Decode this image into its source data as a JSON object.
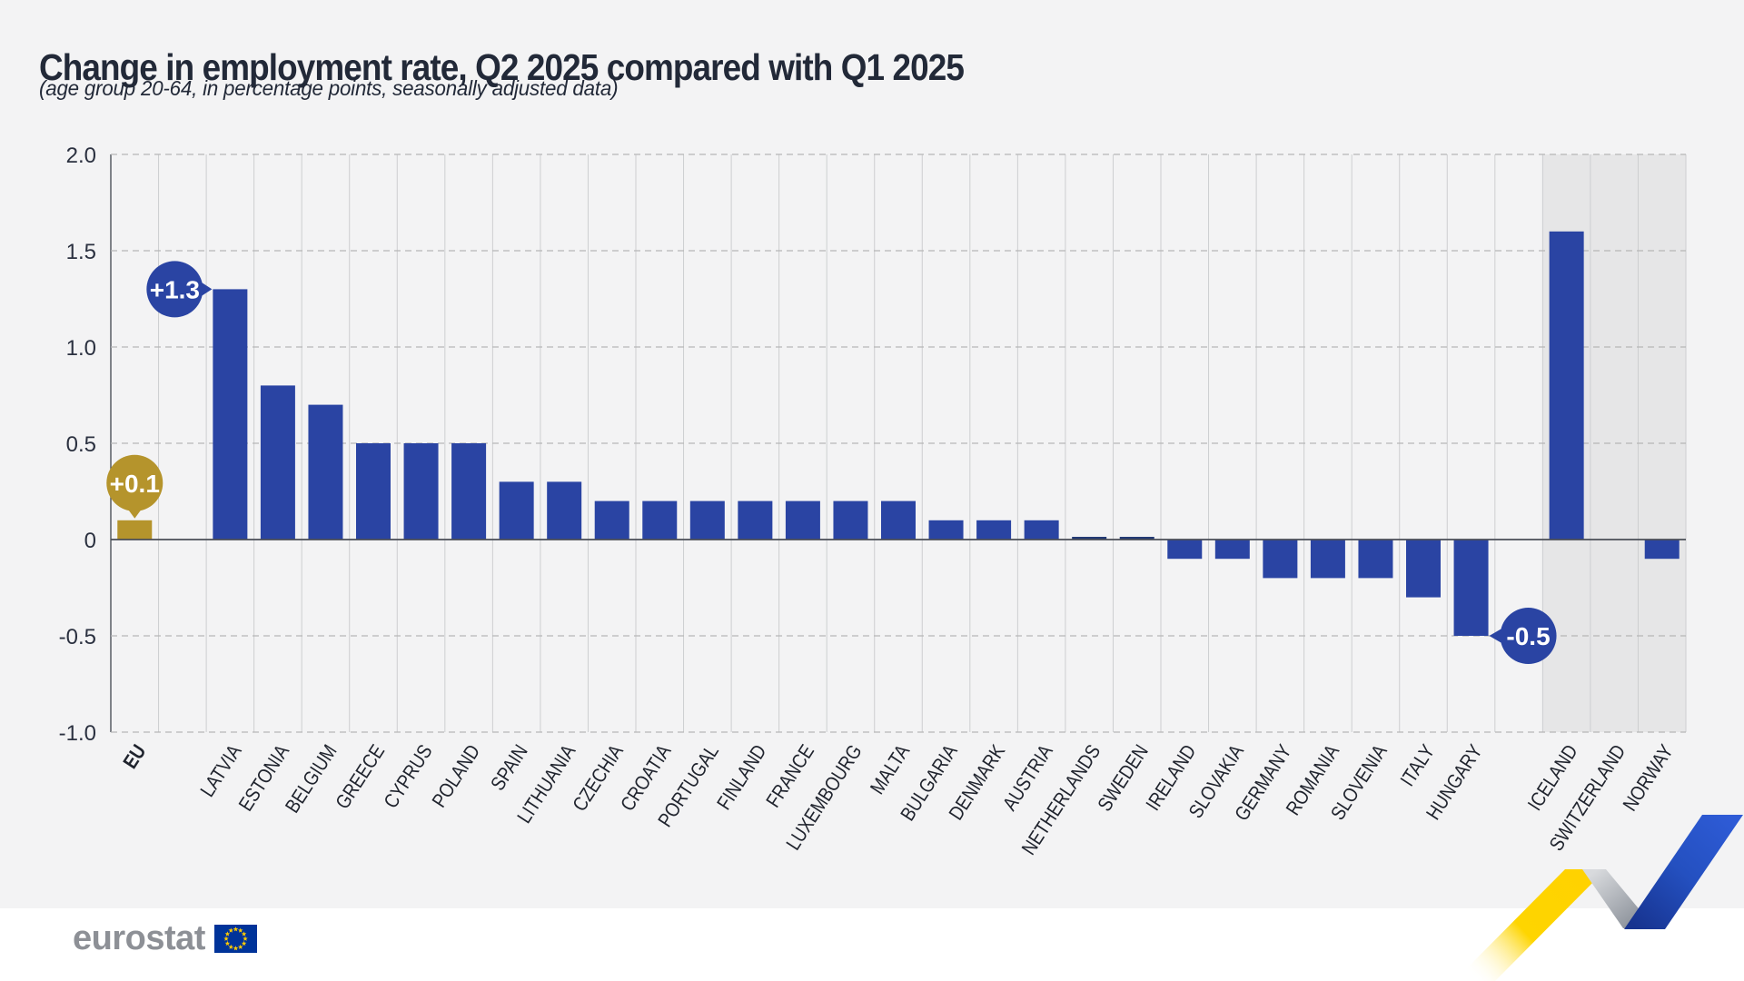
{
  "header": {
    "title": "Change in employment rate, Q2 2025 compared with Q1 2025",
    "subtitle": "(age group 20-64, in percentage points, seasonally adjusted data)"
  },
  "footer": {
    "logo_text": "eurostat"
  },
  "colors": {
    "page_background": "#f3f3f4",
    "bar_blue": "#2a44a3",
    "bar_gold": "#b5942c",
    "zero_bar": "#233a74",
    "badge_blue": "#2a44a3",
    "badge_gold": "#b5942c",
    "efta_band": "#e6e6e7",
    "title_text": "#222938",
    "axis_text": "#2b3140",
    "logo_gray": "#8d9096",
    "flag_blue": "#003399",
    "flag_star": "#ffcc00",
    "ribbon_yellow": "#ffd200",
    "ribbon_gray_light": "#d8dadd",
    "ribbon_gray_dark": "#878d96",
    "ribbon_blue_dark": "#17338f",
    "ribbon_blue_bright": "#2e5bd6"
  },
  "chart_data": {
    "type": "bar",
    "title": "Change in employment rate, Q2 2025 compared with Q1 2025",
    "subtitle": "(age group 20-64, in percentage points, seasonally adjusted data)",
    "ylim": [
      -1.0,
      2.0
    ],
    "grid": true,
    "yticks": [
      {
        "value": 2.0,
        "label": "2.0"
      },
      {
        "value": 1.5,
        "label": "1.5"
      },
      {
        "value": 1.0,
        "label": "1.0"
      },
      {
        "value": 0.5,
        "label": "0.5"
      },
      {
        "value": 0,
        "label": "0"
      },
      {
        "value": -0.5,
        "label": "-0.5"
      },
      {
        "value": -1.0,
        "label": "-1.0"
      }
    ],
    "items": [
      {
        "label": "EU",
        "value": 0.1,
        "color": "gold",
        "bold": true
      },
      {
        "spacer": true
      },
      {
        "label": "LATVIA",
        "value": 1.3
      },
      {
        "label": "ESTONIA",
        "value": 0.8
      },
      {
        "label": "BELGIUM",
        "value": 0.7
      },
      {
        "label": "GREECE",
        "value": 0.5
      },
      {
        "label": "CYPRUS",
        "value": 0.5
      },
      {
        "label": "POLAND",
        "value": 0.5
      },
      {
        "label": "SPAIN",
        "value": 0.3
      },
      {
        "label": "LITHUANIA",
        "value": 0.3
      },
      {
        "label": "CZECHIA",
        "value": 0.2
      },
      {
        "label": "CROATIA",
        "value": 0.2
      },
      {
        "label": "PORTUGAL",
        "value": 0.2
      },
      {
        "label": "FINLAND",
        "value": 0.2
      },
      {
        "label": "FRANCE",
        "value": 0.2
      },
      {
        "label": "LUXEMBOURG",
        "value": 0.2
      },
      {
        "label": "MALTA",
        "value": 0.2
      },
      {
        "label": "BULGARIA",
        "value": 0.1
      },
      {
        "label": "DENMARK",
        "value": 0.1
      },
      {
        "label": "AUSTRIA",
        "value": 0.1
      },
      {
        "label": "NETHERLANDS",
        "value": 0.0
      },
      {
        "label": "SWEDEN",
        "value": 0.0
      },
      {
        "label": "IRELAND",
        "value": -0.1
      },
      {
        "label": "SLOVAKIA",
        "value": -0.1
      },
      {
        "label": "GERMANY",
        "value": -0.2
      },
      {
        "label": "ROMANIA",
        "value": -0.2
      },
      {
        "label": "SLOVENIA",
        "value": -0.2
      },
      {
        "label": "ITALY",
        "value": -0.3
      },
      {
        "label": "HUNGARY",
        "value": -0.5
      },
      {
        "spacer": true
      },
      {
        "label": "ICELAND",
        "value": 1.6,
        "group": "efta"
      },
      {
        "label": "SWITZERLAND",
        "value": null,
        "group": "efta"
      },
      {
        "label": "NORWAY",
        "value": -0.1,
        "group": "efta"
      }
    ],
    "annotations": [
      {
        "text": "+0.1",
        "target": "EU",
        "side": "top",
        "color": "gold"
      },
      {
        "text": "+1.3",
        "target": "LATVIA",
        "side": "left",
        "color": "blue"
      },
      {
        "text": "-0.5",
        "target": "HUNGARY",
        "side": "right",
        "color": "blue"
      }
    ]
  }
}
